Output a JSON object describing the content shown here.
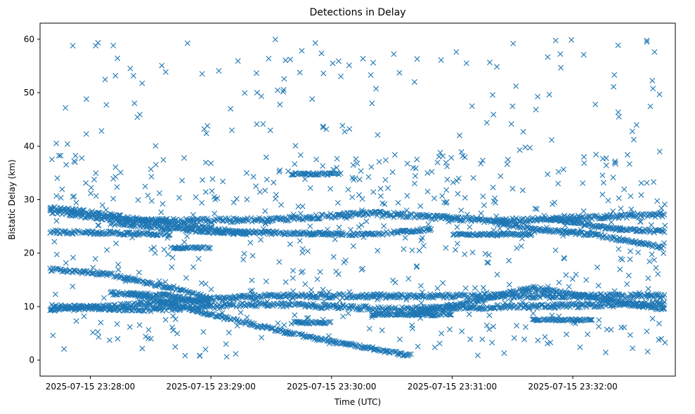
{
  "chart_data": {
    "type": "scatter",
    "title": "Detections in Delay",
    "xlabel": "Time (UTC)",
    "ylabel": "Bistatic Delay (km)",
    "marker": "x",
    "color": "#1f77b4",
    "grid": false,
    "x_start": "2025-07-15 23:27:40",
    "x_end": "2025-07-15 23:32:46",
    "xlim": [
      "2025-07-15 23:27:35",
      "2025-07-15 23:32:51"
    ],
    "ylim": [
      -3,
      63
    ],
    "x_ticks": [
      {
        "value": "2025-07-15 23:28:00",
        "label": "2025-07-15 23:28:00"
      },
      {
        "value": "2025-07-15 23:29:00",
        "label": "2025-07-15 23:29:00"
      },
      {
        "value": "2025-07-15 23:30:00",
        "label": "2025-07-15 23:30:00"
      },
      {
        "value": "2025-07-15 23:31:00",
        "label": "2025-07-15 23:31:00"
      },
      {
        "value": "2025-07-15 23:32:00",
        "label": "2025-07-15 23:32:00"
      }
    ],
    "y_ticks": [
      0,
      10,
      20,
      30,
      40,
      50,
      60
    ],
    "tracks": [
      {
        "points": [
          [
            "2025-07-15 23:27:40",
            28.5
          ],
          [
            "2025-07-15 23:28:40",
            25.5
          ],
          [
            "2025-07-15 23:29:20",
            23.5
          ]
        ],
        "spread": 0.4
      },
      {
        "points": [
          [
            "2025-07-15 23:27:40",
            27.8
          ],
          [
            "2025-07-15 23:28:20",
            26.0
          ],
          [
            "2025-07-15 23:29:30",
            26.2
          ],
          [
            "2025-07-15 23:30:20",
            27.5
          ],
          [
            "2025-07-15 23:31:20",
            26.0
          ],
          [
            "2025-07-15 23:32:46",
            27.2
          ]
        ],
        "spread": 0.4
      },
      {
        "points": [
          [
            "2025-07-15 23:28:10",
            25.5
          ],
          [
            "2025-07-15 23:29:00",
            24.0
          ],
          [
            "2025-07-15 23:30:20",
            23.5
          ],
          [
            "2025-07-15 23:30:50",
            24.5
          ]
        ],
        "spread": 0.3
      },
      {
        "points": [
          [
            "2025-07-15 23:27:40",
            24.0
          ],
          [
            "2025-07-15 23:28:40",
            23.5
          ]
        ],
        "spread": 0.3
      },
      {
        "points": [
          [
            "2025-07-15 23:27:40",
            17.0
          ],
          [
            "2025-07-15 23:28:10",
            16.0
          ],
          [
            "2025-07-15 23:28:40",
            13.5
          ],
          [
            "2025-07-15 23:29:00",
            11.5
          ]
        ],
        "spread": 0.3
      },
      {
        "points": [
          [
            "2025-07-15 23:28:20",
            12.5
          ],
          [
            "2025-07-15 23:29:00",
            8.5
          ],
          [
            "2025-07-15 23:29:40",
            5.0
          ],
          [
            "2025-07-15 23:30:00",
            3.5
          ],
          [
            "2025-07-15 23:30:20",
            2.2
          ],
          [
            "2025-07-15 23:30:40",
            0.8
          ]
        ],
        "spread": 0.3
      },
      {
        "points": [
          [
            "2025-07-15 23:27:40",
            9.5
          ],
          [
            "2025-07-15 23:28:10",
            10.0
          ],
          [
            "2025-07-15 23:28:40",
            11.0
          ],
          [
            "2025-07-15 23:29:00",
            11.5
          ],
          [
            "2025-07-15 23:29:30",
            12.0
          ],
          [
            "2025-07-15 23:30:30",
            12.0
          ],
          [
            "2025-07-15 23:31:30",
            12.0
          ],
          [
            "2025-07-15 23:32:46",
            12.0
          ]
        ],
        "spread": 0.4
      },
      {
        "points": [
          [
            "2025-07-15 23:27:40",
            10.0
          ],
          [
            "2025-07-15 23:28:30",
            9.5
          ],
          [
            "2025-07-15 23:29:30",
            10.5
          ],
          [
            "2025-07-15 23:30:30",
            9.5
          ],
          [
            "2025-07-15 23:31:30",
            10.0
          ],
          [
            "2025-07-15 23:32:46",
            10.5
          ]
        ],
        "spread": 0.4
      },
      {
        "points": [
          [
            "2025-07-15 23:28:10",
            12.5
          ],
          [
            "2025-07-15 23:28:40",
            12.0
          ],
          [
            "2025-07-15 23:29:00",
            10.5
          ]
        ],
        "spread": 0.3
      },
      {
        "points": [
          [
            "2025-07-15 23:29:40",
            7.0
          ],
          [
            "2025-07-15 23:30:00",
            7.0
          ]
        ],
        "spread": 0.2
      },
      {
        "points": [
          [
            "2025-07-15 23:30:20",
            8.5
          ],
          [
            "2025-07-15 23:31:00",
            8.5
          ]
        ],
        "spread": 0.2
      },
      {
        "points": [
          [
            "2025-07-15 23:30:40",
            8.5
          ],
          [
            "2025-07-15 23:31:40",
            13.5
          ],
          [
            "2025-07-15 23:32:46",
            9.5
          ]
        ],
        "spread": 0.3
      },
      {
        "points": [
          [
            "2025-07-15 23:31:20",
            26.0
          ],
          [
            "2025-07-15 23:31:40",
            24.5
          ],
          [
            "2025-07-15 23:32:10",
            23.5
          ],
          [
            "2025-07-15 23:32:46",
            21.0
          ]
        ],
        "spread": 0.3
      },
      {
        "points": [
          [
            "2025-07-15 23:31:50",
            26.5
          ],
          [
            "2025-07-15 23:32:20",
            24.5
          ],
          [
            "2025-07-15 23:32:46",
            24.0
          ]
        ],
        "spread": 0.3
      },
      {
        "points": [
          [
            "2025-07-15 23:28:40",
            21.0
          ],
          [
            "2025-07-15 23:29:00",
            21.0
          ]
        ],
        "spread": 0.2
      },
      {
        "points": [
          [
            "2025-07-15 23:29:40",
            34.8
          ],
          [
            "2025-07-15 23:30:05",
            34.8
          ]
        ],
        "spread": 0.2
      },
      {
        "points": [
          [
            "2025-07-15 23:31:40",
            7.5
          ],
          [
            "2025-07-15 23:32:10",
            7.5
          ]
        ],
        "spread": 0.2
      },
      {
        "points": [
          [
            "2025-07-15 23:31:00",
            23.5
          ],
          [
            "2025-07-15 23:31:40",
            23.5
          ]
        ],
        "spread": 0.2
      }
    ],
    "track_density_per_second": 2.2,
    "background_points": 720,
    "background_ylim": [
      0.5,
      60
    ],
    "background_density_bias": 0.55
  }
}
